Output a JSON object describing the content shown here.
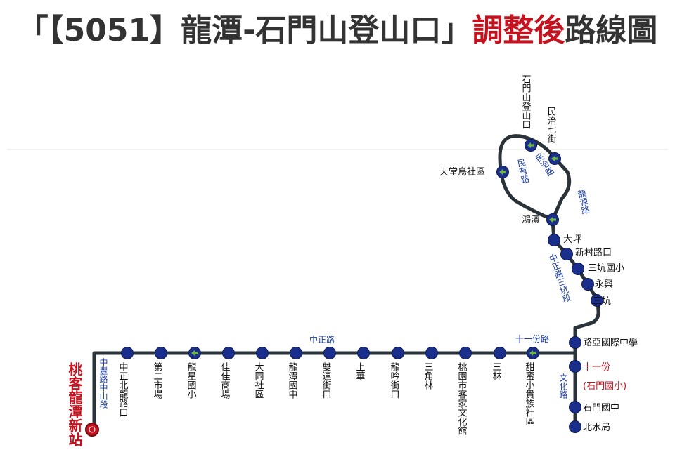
{
  "title": {
    "part1": "「【5051】龍潭-石門山登山口」",
    "part2": "調整後",
    "part3": "路線圖"
  },
  "colors": {
    "route_line": "#2a323a",
    "stop_fill": "#1a2f8c",
    "transfer_fill": "#6fb544",
    "terminal_fill": "#c4121f",
    "road_label": "#1d3fa0",
    "highlight_text": "#c4121f"
  },
  "terminal": {
    "name": "桃客龍潭新站",
    "icon": "terminal-stop-red"
  },
  "road_labels": [
    {
      "id": "zhongfeng",
      "text": "中豐路中山段"
    },
    {
      "id": "zhongzheng",
      "text": "中正路"
    },
    {
      "id": "shiyifen",
      "text": "十一份路"
    },
    {
      "id": "wenhua",
      "text": "文化路"
    },
    {
      "id": "sankeng",
      "text": "中正路三坑段"
    },
    {
      "id": "longyuan",
      "text": "龍源路"
    },
    {
      "id": "minzhi",
      "text": "民治路"
    },
    {
      "id": "minyou",
      "text": "民有路"
    }
  ],
  "stops": [
    {
      "id": "s1",
      "name": "中正北龍路口",
      "type": "regular"
    },
    {
      "id": "s2",
      "name": "第二市場",
      "type": "regular"
    },
    {
      "id": "s3",
      "name": "龍星國小",
      "type": "transfer"
    },
    {
      "id": "s4",
      "name": "佳佳商場",
      "type": "regular"
    },
    {
      "id": "s5",
      "name": "大同社區",
      "type": "regular"
    },
    {
      "id": "s6",
      "name": "龍潭國中",
      "type": "regular"
    },
    {
      "id": "s7",
      "name": "雙連街口",
      "type": "regular"
    },
    {
      "id": "s8",
      "name": "上華",
      "type": "regular"
    },
    {
      "id": "s9",
      "name": "龍吟街口",
      "type": "regular"
    },
    {
      "id": "s10",
      "name": "三角林",
      "type": "regular"
    },
    {
      "id": "s11",
      "name": "桃園市客家文化館",
      "type": "regular"
    },
    {
      "id": "s12",
      "name": "三林",
      "type": "regular"
    },
    {
      "id": "s13",
      "name": "甜蜜小貴族社區",
      "type": "transfer"
    },
    {
      "id": "s14",
      "name": "路亞國際中學",
      "type": "regular"
    },
    {
      "id": "s15",
      "name": "十一份",
      "sub": "(石門國小)",
      "type": "highlight"
    },
    {
      "id": "s16",
      "name": "石門國中",
      "type": "regular"
    },
    {
      "id": "s17",
      "name": "北水局",
      "type": "regular"
    },
    {
      "id": "s18",
      "name": "三坑",
      "type": "regular"
    },
    {
      "id": "s19",
      "name": "永興",
      "type": "regular"
    },
    {
      "id": "s20",
      "name": "三坑國小",
      "type": "regular"
    },
    {
      "id": "s21",
      "name": "新村路口",
      "type": "regular"
    },
    {
      "id": "s22",
      "name": "大坪",
      "type": "regular"
    },
    {
      "id": "s23",
      "name": "鴻濱",
      "type": "transfer"
    },
    {
      "id": "s24",
      "name": "天堂鳥社區",
      "type": "transfer"
    },
    {
      "id": "s25",
      "name": "石門山登山口",
      "type": "transfer"
    },
    {
      "id": "s26",
      "name": "民治七街",
      "type": "transfer"
    }
  ]
}
